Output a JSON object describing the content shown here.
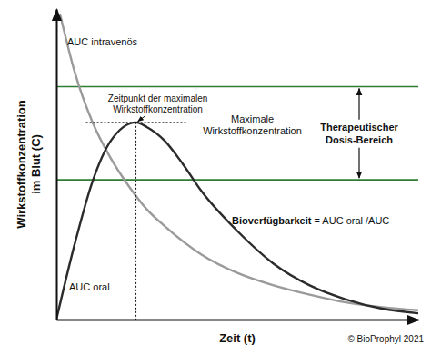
{
  "chart_data": {
    "type": "line",
    "x_label": "Zeit (t)",
    "y_label": "Wirkstoffkonzentration im Blut (C)",
    "xlim": [
      0,
      10
    ],
    "ylim": [
      0,
      10
    ],
    "tick_labels": false,
    "grid": false,
    "series": [
      {
        "name": "AUC intravenös",
        "color": "#9a9a9a",
        "x": [
          0.1,
          0.5,
          1.0,
          1.5,
          2.0,
          2.5,
          3.0,
          4.0,
          5.0,
          6.0,
          7.0,
          8.0,
          9.0,
          10.0
        ],
        "values": [
          9.85,
          8.0,
          6.35,
          5.2,
          4.3,
          3.55,
          3.0,
          2.1,
          1.5,
          1.1,
          0.8,
          0.55,
          0.4,
          0.3
        ]
      },
      {
        "name": "AUC oral",
        "color": "#2b2b2b",
        "x": [
          0,
          0.5,
          1.0,
          1.5,
          2.2,
          2.5,
          3.0,
          3.5,
          4.0,
          5.0,
          6.0,
          7.0,
          8.0,
          9.0,
          10.0
        ],
        "values": [
          0,
          2.4,
          4.45,
          5.75,
          6.35,
          6.2,
          5.75,
          5.0,
          4.15,
          2.85,
          1.8,
          1.1,
          0.65,
          0.35,
          0.2
        ]
      }
    ],
    "ranges": [
      {
        "label": "Therapeutischer Dosis-Bereich",
        "values": [
          4.5,
          7.5
        ],
        "color": "#2e7d32"
      }
    ],
    "annotations": {
      "peak_time": [
        "Zeitpunkt der maximalen",
        "Wirkstoffkonzentration"
      ],
      "peak_value": [
        "Maximale",
        "Wirkstoffkonzentration"
      ],
      "bioavailability": {
        "term": "Bioverfügbarkeit",
        "text": "= AUC oral /AUC"
      },
      "credit": "© BioProphyl 2021"
    }
  }
}
